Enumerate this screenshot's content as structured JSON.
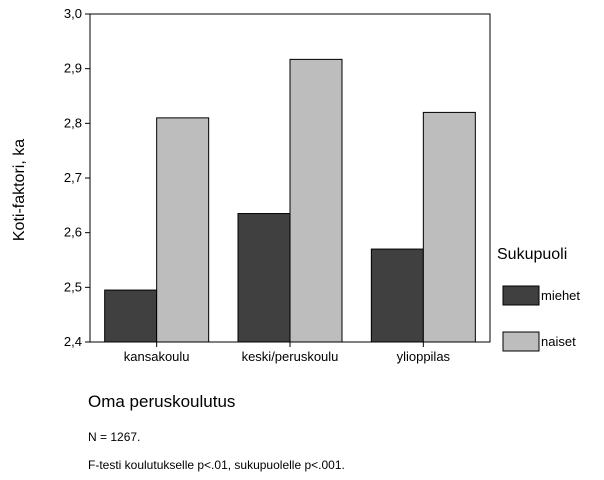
{
  "chart_data": {
    "type": "bar",
    "categories": [
      "kansakoulu",
      "keski/peruskoulu",
      "ylioppilas"
    ],
    "series": [
      {
        "name": "miehet",
        "values": [
          2.495,
          2.635,
          2.57
        ],
        "color": "#404040"
      },
      {
        "name": "naiset",
        "values": [
          2.81,
          2.917,
          2.82
        ],
        "color": "#bdbdbd"
      }
    ],
    "ylabel": "Koti-faktori, ka",
    "xlabel": "Oma peruskoulutus",
    "ylim": [
      2.4,
      3.0
    ],
    "yticks": [
      "2,4",
      "2,5",
      "2,6",
      "2,7",
      "2,8",
      "2,9",
      "3,0"
    ],
    "legend_title": "Sukupuoli",
    "legend_position": "right",
    "grid": false
  },
  "notes": {
    "n": "N = 1267.",
    "ftest": "F-testi koulutukselle p<.01, sukupuolelle p<.001."
  }
}
